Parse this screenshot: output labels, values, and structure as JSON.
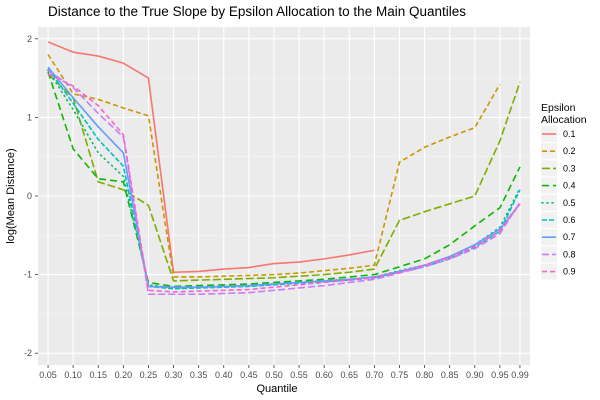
{
  "chart_data": {
    "type": "line",
    "title": "Distance to the True Slope by Epsilon Allocation to the Main Quantiles",
    "xlabel": "Quantile",
    "ylabel": "log(Mean Distance)",
    "x": [
      0.05,
      0.1,
      0.15,
      0.2,
      0.25,
      0.3,
      0.35,
      0.4,
      0.45,
      0.5,
      0.55,
      0.6,
      0.65,
      0.7,
      0.75,
      0.8,
      0.85,
      0.9,
      0.95,
      0.99
    ],
    "x_tick_labels": [
      "0.05",
      "0.10",
      "0.15",
      "0.20",
      "0.25",
      "0.30",
      "0.35",
      "0.40",
      "0.45",
      "0.50",
      "0.55",
      "0.60",
      "0.65",
      "0.70",
      "0.75",
      "0.80",
      "0.85",
      "0.90",
      "0.95",
      "0.99"
    ],
    "xlim": [
      0.03,
      1.01
    ],
    "ylim": [
      -2.15,
      2.15
    ],
    "y_ticks": [
      -2,
      -1,
      0,
      1,
      2
    ],
    "y_tick_labels": [
      "-2",
      "-1",
      "0",
      "1",
      "2"
    ],
    "grid": true,
    "legend_title": "Epsilon Allocation",
    "legend_position": "right",
    "series": [
      {
        "name": "0.1",
        "color": "#F8766D",
        "dash": "solid",
        "values": [
          1.96,
          1.83,
          1.78,
          1.69,
          1.5,
          -0.97,
          -0.96,
          -0.93,
          -0.91,
          -0.86,
          -0.84,
          -0.8,
          -0.75,
          -0.69,
          null,
          null,
          null,
          null,
          null,
          null
        ]
      },
      {
        "name": "0.2",
        "color": "#CD9600",
        "dash": "5,3",
        "values": [
          1.8,
          1.3,
          1.23,
          1.12,
          1.02,
          -1.03,
          -1.03,
          -1.02,
          -1.01,
          -1.0,
          -0.98,
          -0.95,
          -0.92,
          -0.88,
          0.43,
          0.62,
          0.75,
          0.87,
          1.42,
          null
        ]
      },
      {
        "name": "0.3",
        "color": "#7CAE00",
        "dash": "8,3",
        "values": [
          1.55,
          1.25,
          0.18,
          0.08,
          -0.12,
          -1.08,
          -1.07,
          -1.06,
          -1.05,
          -1.04,
          -1.02,
          -1.0,
          -0.97,
          -0.93,
          -0.31,
          -0.2,
          -0.1,
          0.0,
          0.7,
          1.45
        ]
      },
      {
        "name": "0.4",
        "color": "#0CB702",
        "dash": "7,4",
        "values": [
          1.58,
          0.6,
          0.22,
          0.18,
          -1.1,
          -1.15,
          -1.14,
          -1.13,
          -1.12,
          -1.1,
          -1.08,
          -1.06,
          -1.03,
          -1.0,
          -0.9,
          -0.8,
          -0.62,
          -0.38,
          -0.15,
          0.37
        ]
      },
      {
        "name": "0.5",
        "color": "#00BE67",
        "dash": "1,4",
        "values": [
          1.6,
          1.1,
          0.55,
          0.25,
          -1.13,
          -1.17,
          -1.16,
          -1.15,
          -1.14,
          -1.12,
          -1.1,
          -1.08,
          -1.06,
          -1.03,
          -0.95,
          -0.88,
          -0.78,
          -0.62,
          -0.4,
          0.1
        ]
      },
      {
        "name": "0.6",
        "color": "#00BFC4",
        "dash": "5,2",
        "values": [
          1.62,
          1.18,
          0.72,
          0.38,
          -1.15,
          -1.18,
          -1.17,
          -1.16,
          -1.15,
          -1.13,
          -1.11,
          -1.09,
          -1.07,
          -1.04,
          -0.97,
          -0.9,
          -0.8,
          -0.65,
          -0.45,
          0.08
        ]
      },
      {
        "name": "0.7",
        "color": "#619CFF",
        "dash": "solid",
        "values": [
          1.64,
          1.25,
          0.88,
          0.55,
          -1.15,
          -1.16,
          -1.16,
          -1.15,
          -1.14,
          -1.12,
          -1.1,
          -1.08,
          -1.06,
          -1.03,
          -0.96,
          -0.88,
          -0.77,
          -0.62,
          -0.42,
          -0.1
        ]
      },
      {
        "name": "0.8",
        "color": "#C77CFF",
        "dash": "7,3",
        "values": [
          1.6,
          1.38,
          1.05,
          0.75,
          -1.25,
          -1.25,
          -1.25,
          -1.24,
          -1.23,
          -1.2,
          -1.17,
          -1.14,
          -1.1,
          -1.06,
          -0.98,
          -0.9,
          -0.8,
          -0.67,
          -0.48,
          -0.08
        ]
      },
      {
        "name": "0.9",
        "color": "#FF61CC",
        "dash": "5,3",
        "values": [
          1.55,
          1.4,
          1.15,
          0.78,
          -1.2,
          -1.22,
          -1.21,
          -1.2,
          -1.19,
          -1.16,
          -1.13,
          -1.1,
          -1.07,
          -1.04,
          -0.97,
          -0.88,
          -0.78,
          -0.64,
          -0.45,
          -0.1
        ]
      }
    ]
  }
}
